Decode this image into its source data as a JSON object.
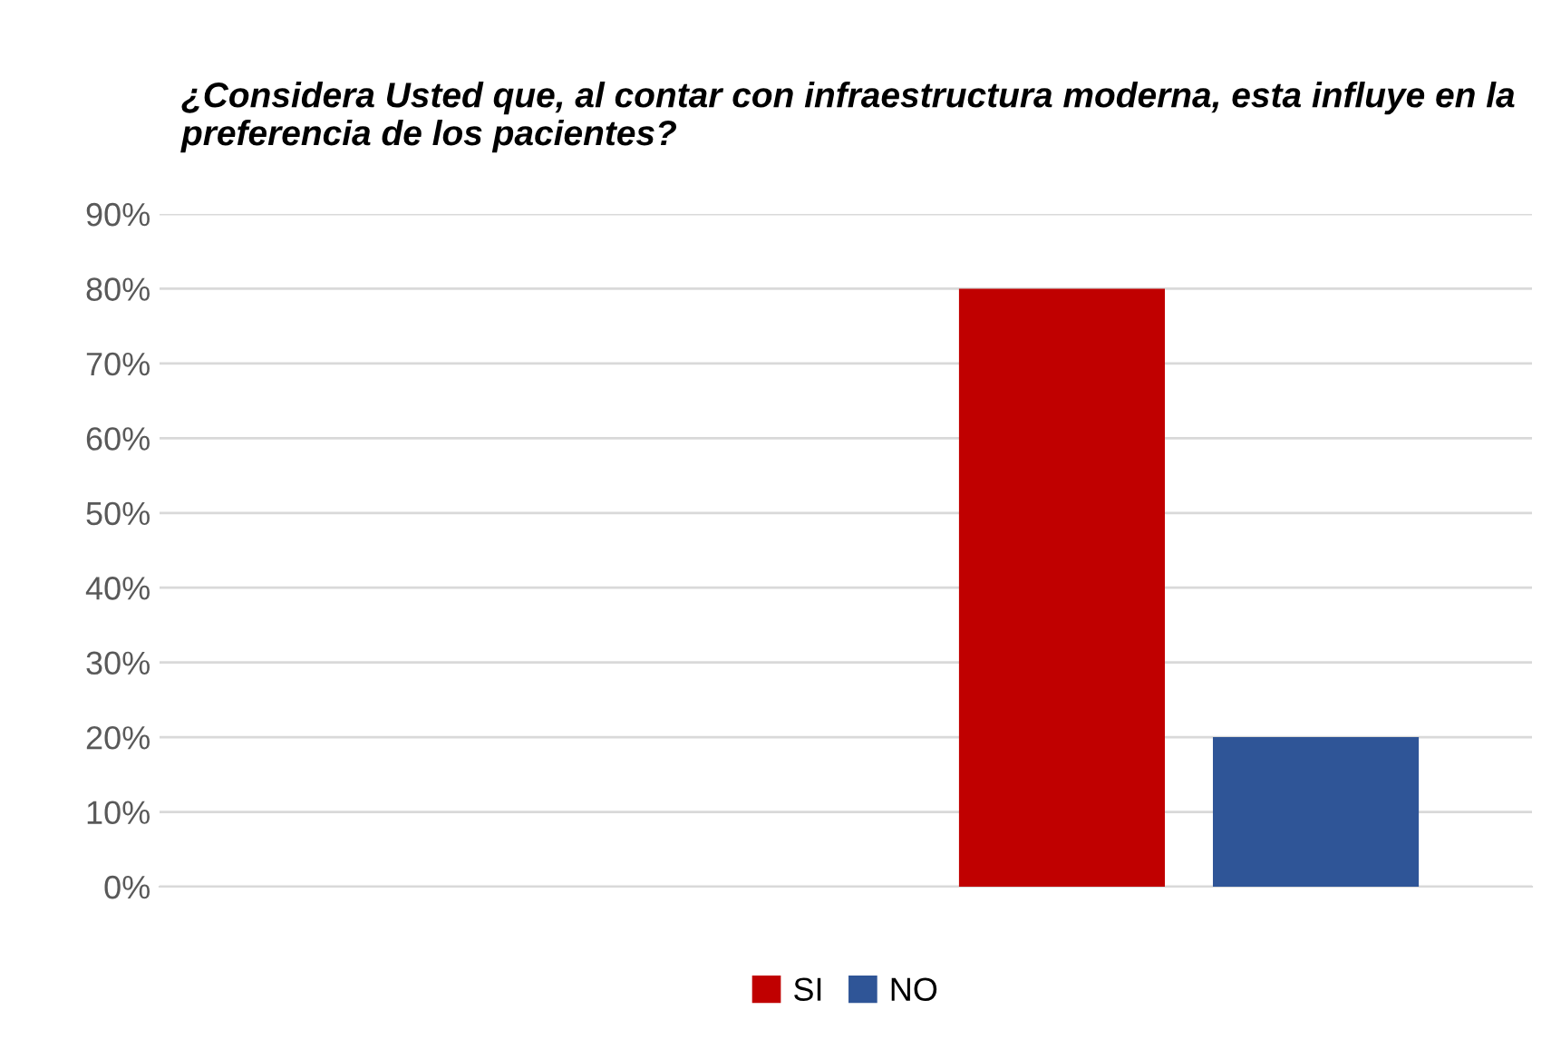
{
  "chart_data": {
    "type": "bar",
    "title": "¿Considera Usted que, al contar con infraestructura moderna, esta influye en la preferencia de los pacientes?",
    "categories": [
      null,
      null
    ],
    "series": [
      {
        "name": "SI",
        "color": "#c00000",
        "values": [
          null,
          80
        ]
      },
      {
        "name": "NO",
        "color": "#2f5597",
        "values": [
          null,
          20
        ]
      }
    ],
    "ylim": [
      0,
      90
    ],
    "yticks": [
      {
        "value": 0,
        "label": "0%"
      },
      {
        "value": 10,
        "label": "10%"
      },
      {
        "value": 20,
        "label": "20%"
      },
      {
        "value": 30,
        "label": "30%"
      },
      {
        "value": 40,
        "label": "40%"
      },
      {
        "value": 50,
        "label": "50%"
      },
      {
        "value": 60,
        "label": "60%"
      },
      {
        "value": 70,
        "label": "70%"
      },
      {
        "value": 80,
        "label": "80%"
      },
      {
        "value": 90,
        "label": "90%"
      }
    ],
    "grid": "y",
    "legend": "bottom"
  }
}
